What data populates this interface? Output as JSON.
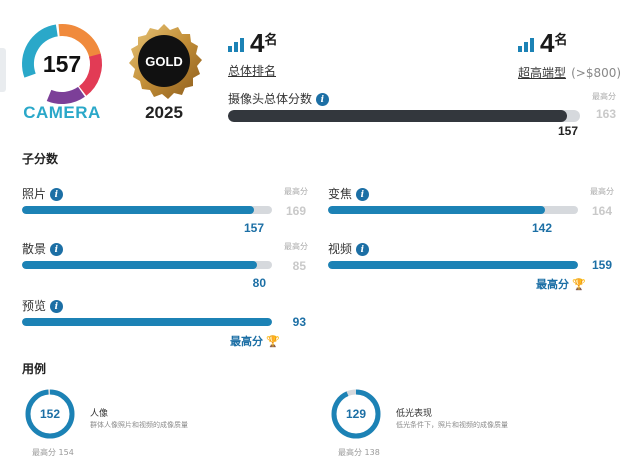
{
  "camera_badge": {
    "score": "157",
    "label": "CAMERA"
  },
  "gold_badge": {
    "label": "GOLD",
    "year": "2025"
  },
  "rank_overall": {
    "number": "4",
    "suffix": "名",
    "label": "总体排名"
  },
  "rank_segment": {
    "number": "4",
    "suffix": "名",
    "label": "超高端型",
    "label_extra": "(>$800)"
  },
  "overall_score": {
    "label": "摄像头总体分数",
    "best_label": "最高分",
    "best_value": "163",
    "value": "157",
    "fraction": 0.963
  },
  "subscores": {
    "title": "子分数",
    "photo": {
      "label": "照片",
      "best_label": "最高分",
      "best_value": "169",
      "value": "157",
      "fraction": 0.929
    },
    "zoom": {
      "label": "变焦",
      "best_label": "最高分",
      "best_value": "164",
      "value": "142",
      "fraction": 0.866
    },
    "bokeh": {
      "label": "散景",
      "best_label": "最高分",
      "best_value": "85",
      "value": "80",
      "fraction": 0.941
    },
    "video": {
      "label": "视频",
      "value": "159",
      "best_text": "最高分",
      "fraction": 1.0
    },
    "preview": {
      "label": "预览",
      "value": "93",
      "best_text": "最高分",
      "fraction": 1.0
    }
  },
  "use_cases": {
    "title": "用例",
    "portrait": {
      "score": "152",
      "title": "人像",
      "desc": "群体人像照片和视频的成像质量",
      "best": "最高分 154",
      "fraction": 0.987
    },
    "lowlight": {
      "score": "129",
      "title": "低光表现",
      "desc": "低光条件下，照片和视频的成像质量",
      "best": "最高分 138",
      "fraction": 0.935
    }
  },
  "colors": {
    "accent": "#1c82b5",
    "brand": "#2aa8c9",
    "gold": "#c99a3c",
    "track": "#d6d9dd",
    "dark_bar": "#33373d"
  }
}
